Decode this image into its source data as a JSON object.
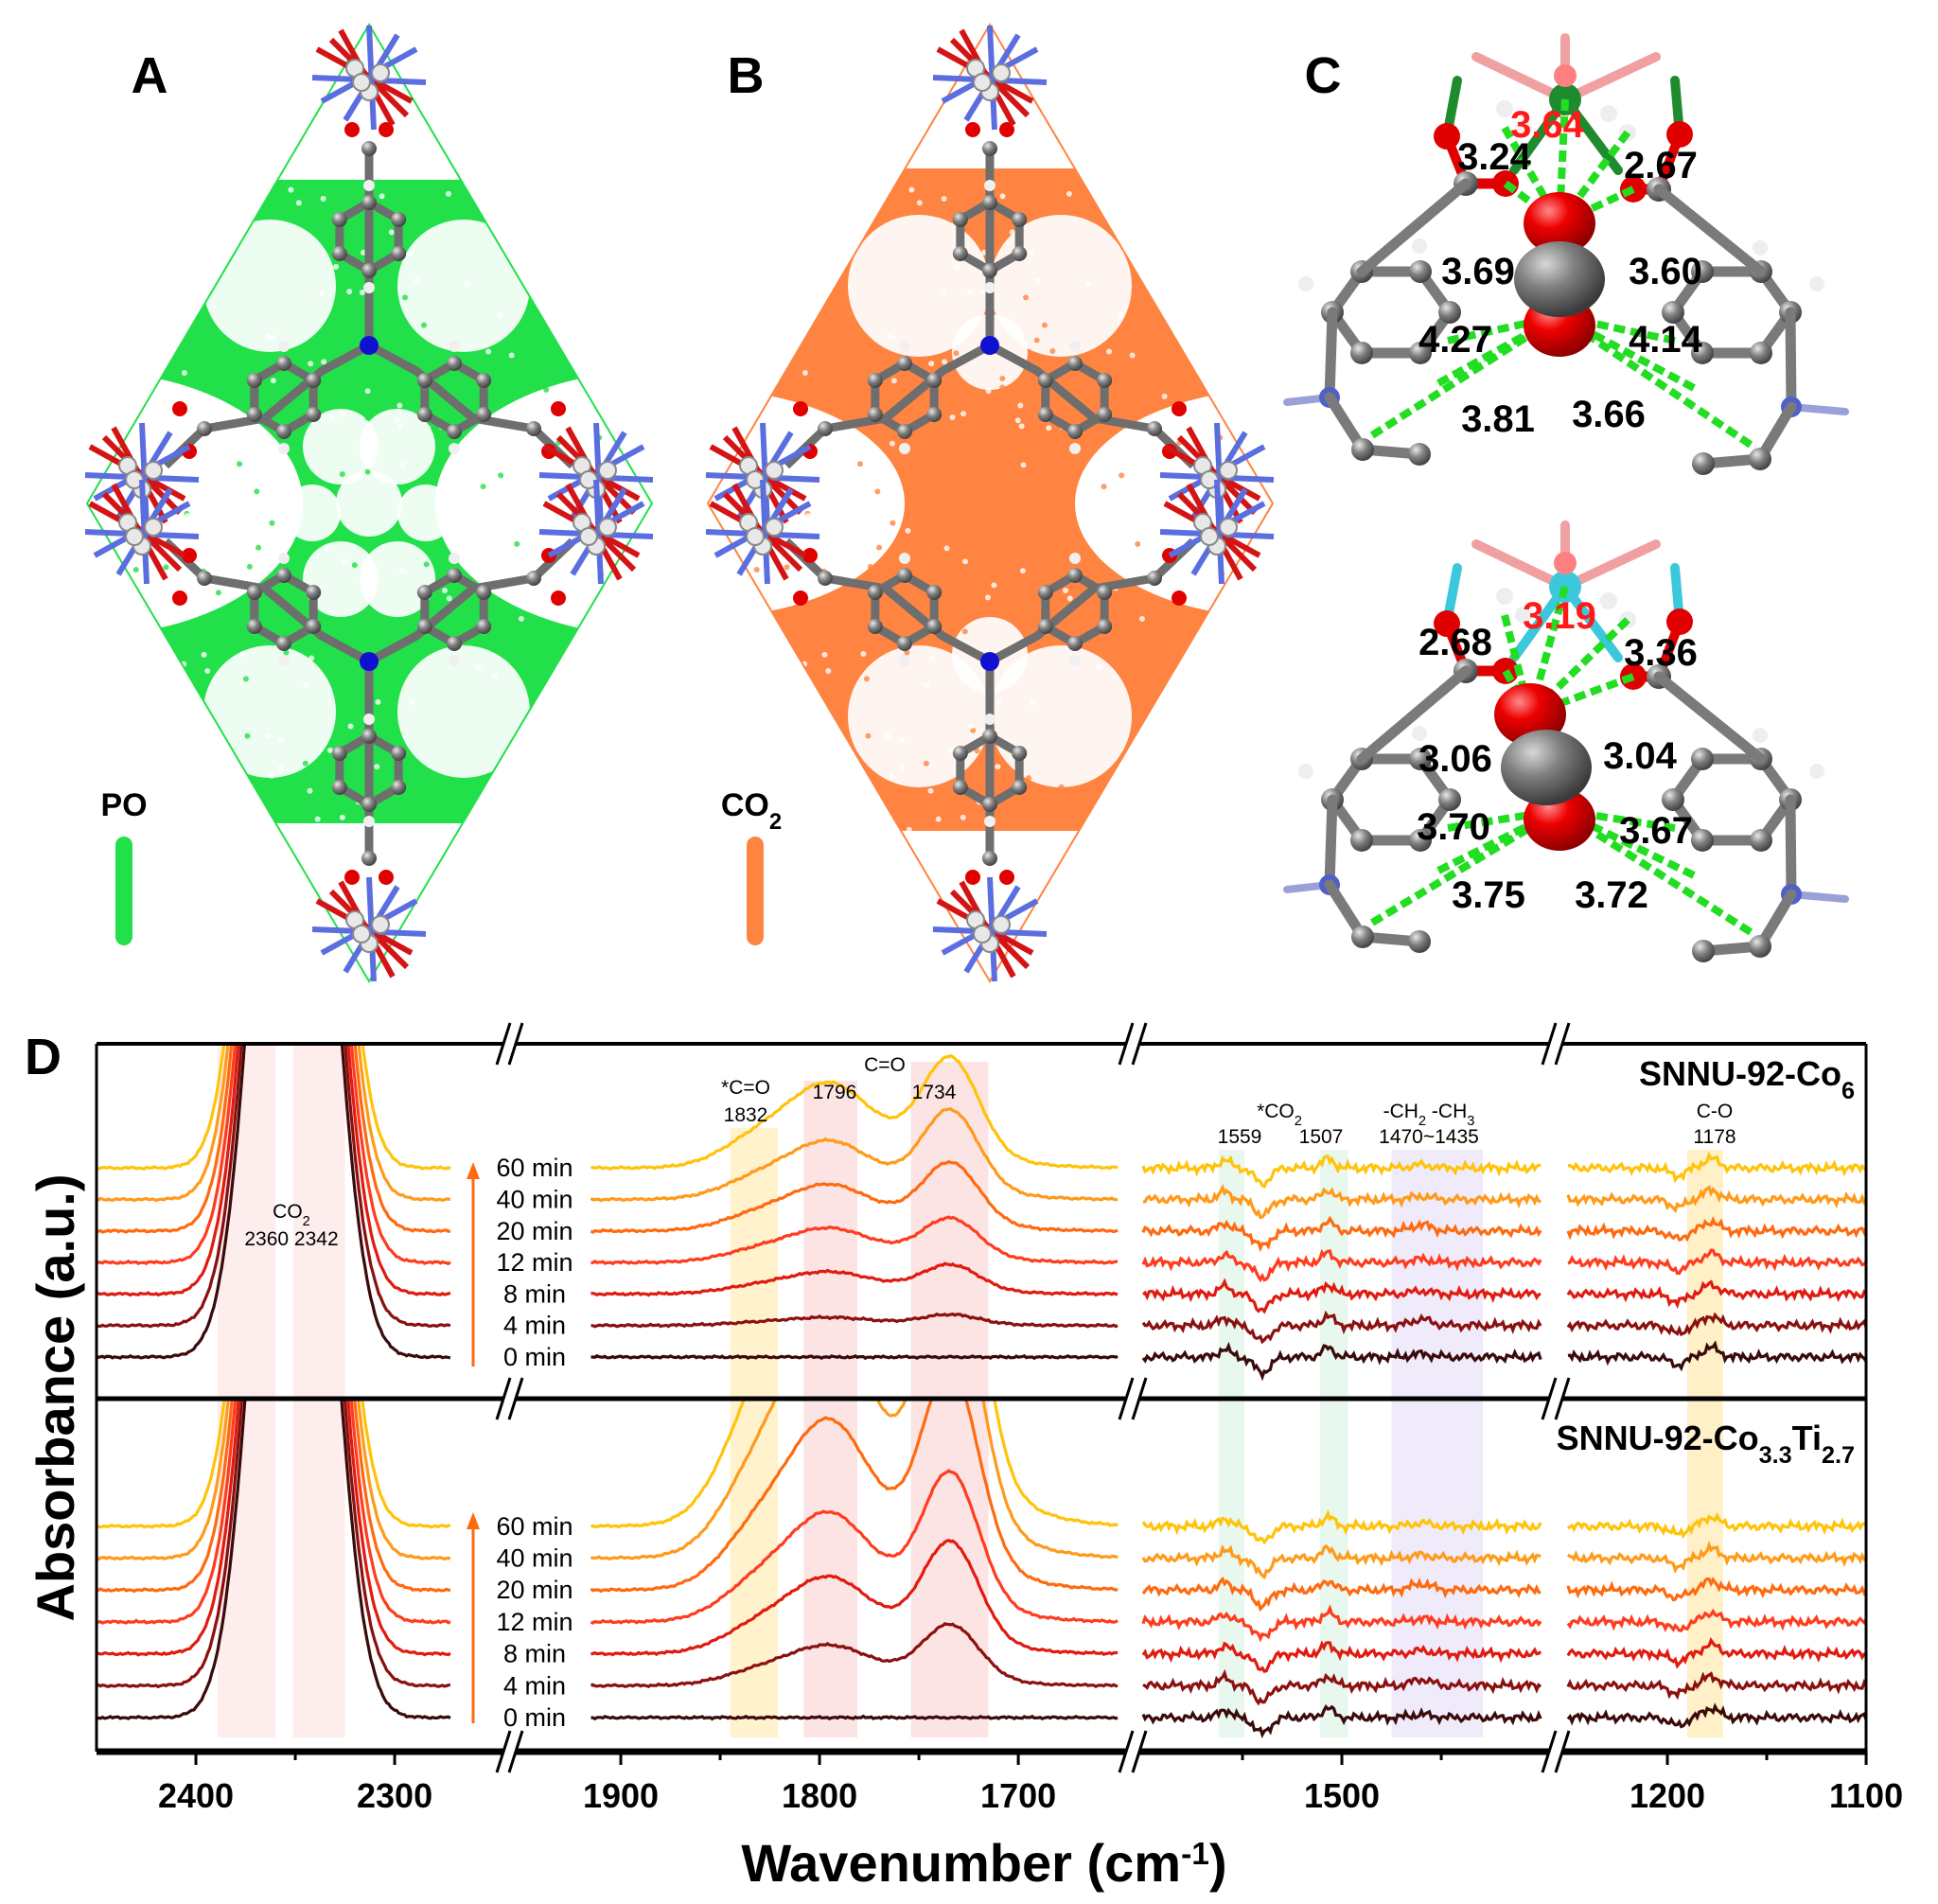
{
  "panels": {
    "A": {
      "letter": "A",
      "legend": "PO",
      "density_color": "#22E04A"
    },
    "B": {
      "letter": "B",
      "legend_main": "CO",
      "legend_sub": "2",
      "density_color": "#FF8442"
    },
    "C": {
      "letter": "C",
      "top": {
        "metal_color": "#1E8C2E",
        "metal_distance": "3.64",
        "distances": [
          "3.24",
          "2.67",
          "3.69",
          "3.60",
          "4.27",
          "4.14",
          "3.81",
          "3.66"
        ]
      },
      "bottom": {
        "metal_color": "#3CC8DC",
        "metal_distance": "3.19",
        "distances": [
          "2.68",
          "3.36",
          "3.06",
          "3.04",
          "3.70",
          "3.67",
          "3.75",
          "3.72"
        ]
      }
    }
  },
  "chart_data": {
    "panel_letter": "D",
    "type": "line",
    "xlabel_main": "Wavenumber (cm",
    "xlabel_sup": "-1",
    "xlabel_end": ")",
    "ylabel": "Absorbance (a.u.)",
    "x_reversed": true,
    "x_axis_breaks": true,
    "x_segments": [
      [
        2450,
        2250
      ],
      [
        1950,
        1650
      ],
      [
        1600,
        1400
      ],
      [
        1250,
        1100
      ]
    ],
    "xticks": [
      "2400",
      "2300",
      "1900",
      "1800",
      "1700",
      "1500",
      "1200",
      "1100"
    ],
    "xtick_values": [
      2400,
      2300,
      1900,
      1800,
      1700,
      1500,
      1200,
      1100
    ],
    "minor_ticks": [
      2350,
      1850,
      1750,
      1550,
      1450,
      1150
    ],
    "grid": false,
    "bands": [
      {
        "from": 2389,
        "to": 2360,
        "color": "#FDEDED"
      },
      {
        "from": 2351,
        "to": 2325,
        "color": "#FDEDED"
      },
      {
        "from": 1845,
        "to": 1821,
        "color": "#FFF2CC"
      },
      {
        "from": 1808,
        "to": 1781,
        "color": "#FDE4E4"
      },
      {
        "from": 1754,
        "to": 1715,
        "color": "#FDE4E4"
      },
      {
        "from": 1562,
        "to": 1549,
        "color": "#E9F8EF"
      },
      {
        "from": 1511,
        "to": 1497,
        "color": "#E9F8EF"
      },
      {
        "from": 1475,
        "to": 1429,
        "color": "#EFEBFB"
      },
      {
        "from": 1190,
        "to": 1172,
        "color": "#FFF0C8"
      }
    ],
    "annotations": [
      {
        "parts": [
          {
            "t": "CO"
          },
          {
            "t": "2",
            "sub": true
          }
        ]
      },
      {
        "parts": [
          {
            "t": "2360  2342"
          }
        ]
      },
      {
        "parts": [
          {
            "t": "*C=O"
          }
        ]
      },
      {
        "parts": [
          {
            "t": "1832"
          }
        ]
      },
      {
        "parts": [
          {
            "t": "C=O"
          }
        ]
      },
      {
        "parts": [
          {
            "t": "1796"
          }
        ]
      },
      {
        "parts": [
          {
            "t": "1734"
          }
        ]
      },
      {
        "parts": [
          {
            "t": "*CO"
          },
          {
            "t": "2",
            "sub": true
          }
        ]
      },
      {
        "parts": [
          {
            "t": "1559"
          }
        ]
      },
      {
        "parts": [
          {
            "t": "1507"
          }
        ]
      },
      {
        "parts": [
          {
            "t": "-CH"
          },
          {
            "t": "2",
            "sub": true
          },
          {
            "t": " -CH"
          },
          {
            "t": "3",
            "sub": true
          }
        ]
      },
      {
        "parts": [
          {
            "t": "1470~1435"
          }
        ]
      },
      {
        "parts": [
          {
            "t": "C-O"
          }
        ]
      },
      {
        "parts": [
          {
            "t": "1178"
          }
        ]
      }
    ],
    "time_arrow_color": "#FF6A10",
    "panels": [
      {
        "name_parts": [
          {
            "t": "SNNU-92-Co"
          },
          {
            "t": "6",
            "sub": true
          }
        ],
        "series": [
          {
            "name": "0 min",
            "color": "#3B0A0A",
            "co2": 16,
            "a1734": 0,
            "a1796": 0
          },
          {
            "name": "4 min",
            "color": "#8B1010",
            "co2": 16.5,
            "a1734": 0.3,
            "a1796": 0.2
          },
          {
            "name": "8 min",
            "color": "#E01B10",
            "co2": 17,
            "a1734": 0.8,
            "a1796": 0.55
          },
          {
            "name": "12 min",
            "color": "#FF3C1E",
            "co2": 17.5,
            "a1734": 1.2,
            "a1796": 0.85
          },
          {
            "name": "20 min",
            "color": "#FF6A10",
            "co2": 18,
            "a1734": 1.9,
            "a1796": 1.15
          },
          {
            "name": "40 min",
            "color": "#FF9A1A",
            "co2": 18.5,
            "a1734": 2.5,
            "a1796": 1.45
          },
          {
            "name": "60 min",
            "color": "#FFC30A",
            "co2": 19,
            "a1734": 3.0,
            "a1796": 2.1
          }
        ]
      },
      {
        "name_parts": [
          {
            "t": "SNNU-92-Co"
          },
          {
            "t": "3.3",
            "sub": true
          },
          {
            "t": "Ti"
          },
          {
            "t": "2.7",
            "sub": true
          }
        ],
        "series": [
          {
            "name": "0 min",
            "color": "#3B0A0A",
            "co2": 16,
            "a1734": 0,
            "a1796": 0
          },
          {
            "name": "4 min",
            "color": "#8B1010",
            "co2": 16.5,
            "a1734": 1.7,
            "a1796": 1.0
          },
          {
            "name": "8 min",
            "color": "#E01B10",
            "co2": 17,
            "a1734": 3.1,
            "a1796": 1.9
          },
          {
            "name": "12 min",
            "color": "#FF3C1E",
            "co2": 17.5,
            "a1734": 4.1,
            "a1796": 2.7
          },
          {
            "name": "20 min",
            "color": "#FF6A10",
            "co2": 18,
            "a1734": 6,
            "a1796": 4.2
          },
          {
            "name": "40 min",
            "color": "#FF9A1A",
            "co2": 18.5,
            "a1734": 8,
            "a1796": 6
          },
          {
            "name": "60 min",
            "color": "#FFC30A",
            "co2": 19,
            "a1734": 10,
            "a1796": 8
          }
        ]
      }
    ]
  }
}
